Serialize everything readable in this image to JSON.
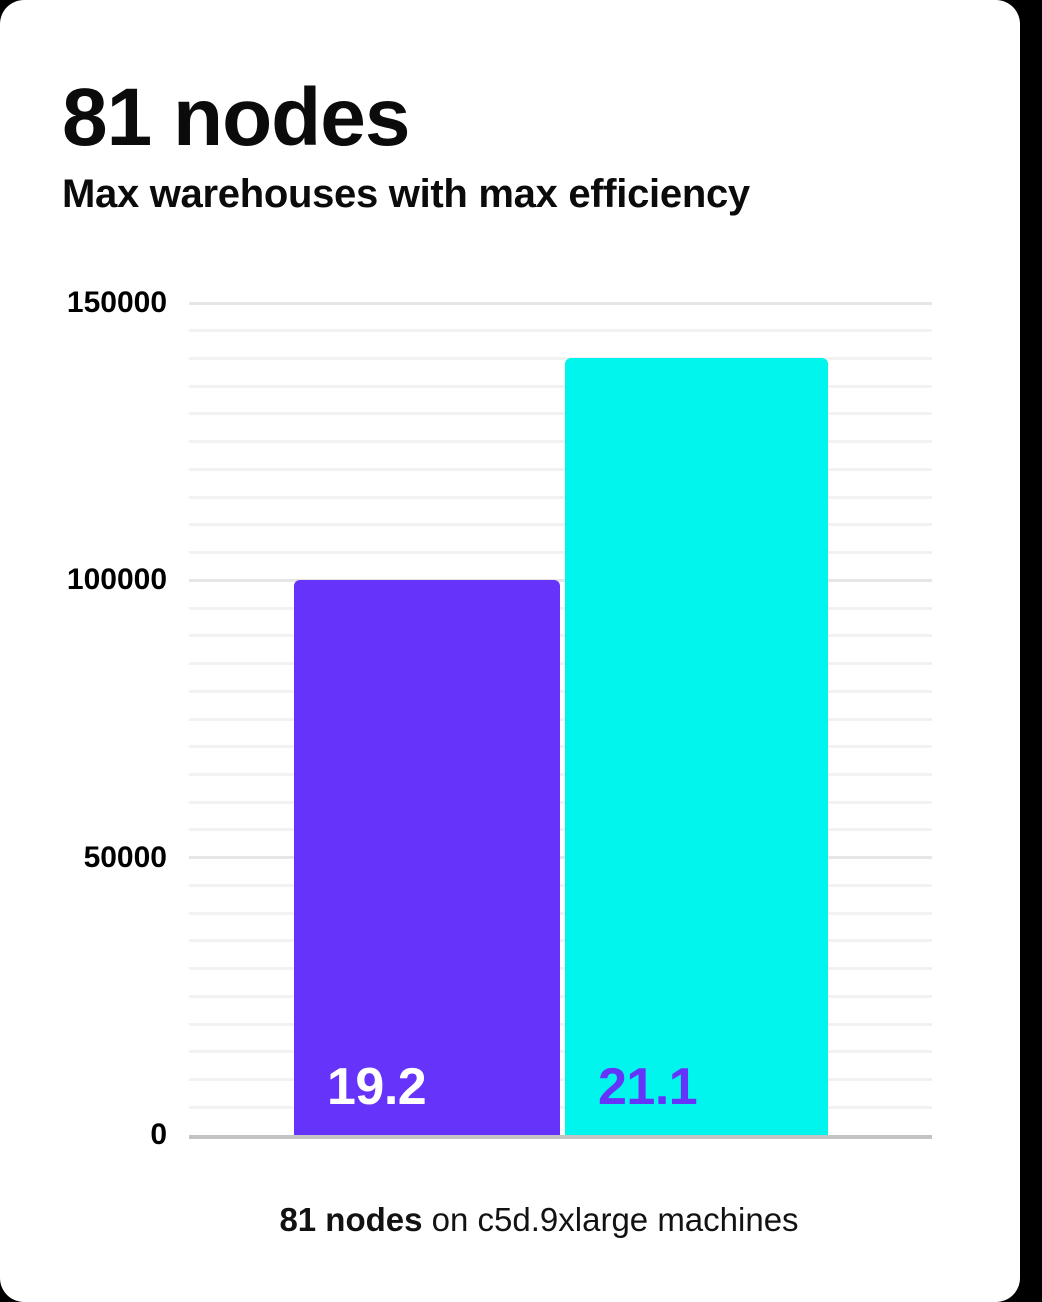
{
  "chart_data": {
    "type": "bar",
    "title": "81 nodes",
    "subtitle": "Max warehouses with max efficiency",
    "categories": [
      "19.2",
      "21.1"
    ],
    "values": [
      100000,
      140000
    ],
    "bar_labels": [
      "19.2",
      "21.1"
    ],
    "bar_colors": [
      "#6633fa",
      "#00f5ec"
    ],
    "bar_label_colors": [
      "#ffffff",
      "#6633fa"
    ],
    "ylim": [
      0,
      150000
    ],
    "yticks": [
      0,
      50000,
      100000,
      150000
    ],
    "ytick_labels": [
      "0",
      "50000",
      "100000",
      "150000"
    ],
    "minor_grid_step": 5000,
    "major_grid_step": 50000,
    "grid": true,
    "grid_orientation": "horizontal",
    "legend_position": "none",
    "xlabel": "",
    "ylabel": "",
    "caption": "81 nodes on c5d.9xlarge machines",
    "caption_parts": {
      "bold": "81 nodes",
      "rest": " on c5d.9xlarge machines"
    },
    "axis_color": "#c3c3c3",
    "minor_grid_color": "#f2f2f2",
    "major_grid_color": "#e6e6e6"
  },
  "colors": {
    "page_background": "#000000",
    "card_background": "#ffffff",
    "text": "#0b0b0b",
    "accent_purple": "#6633fa",
    "accent_cyan": "#00f5ec"
  }
}
